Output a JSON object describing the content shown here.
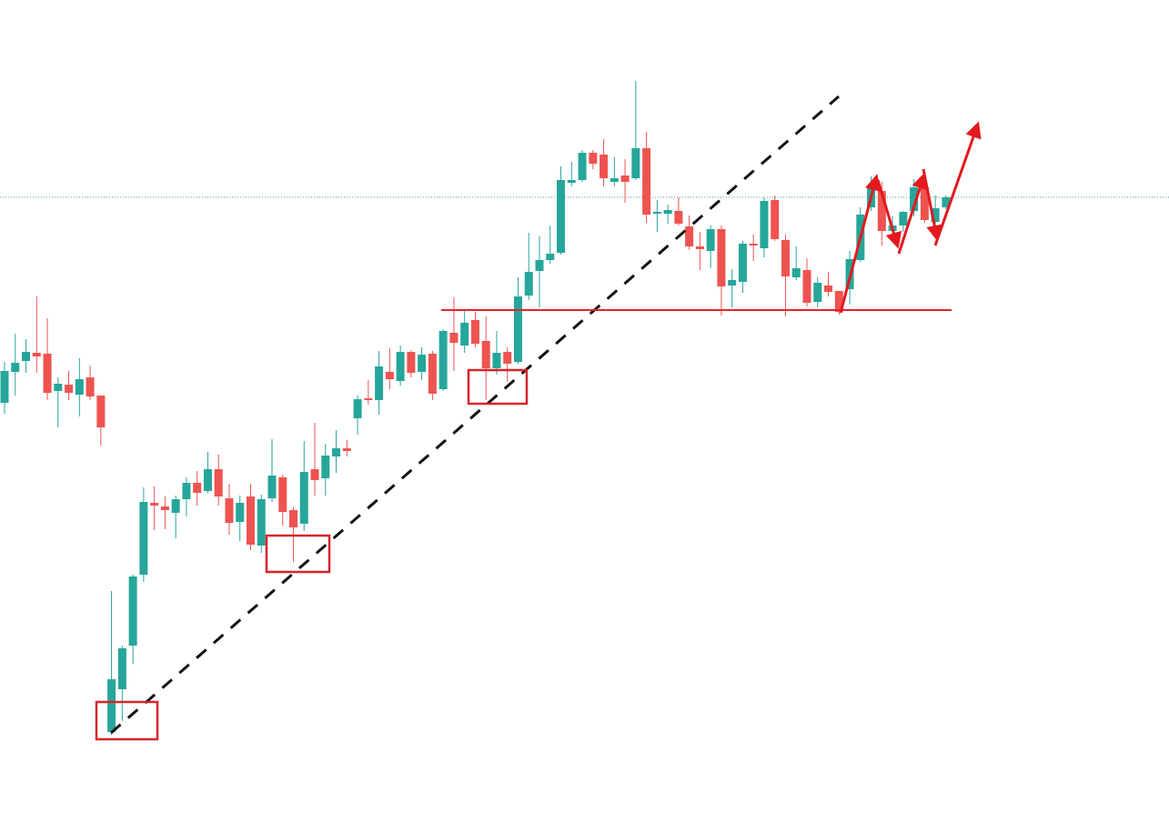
{
  "chart_data": {
    "type": "candlestick",
    "up_color": "#26a69a",
    "down_color": "#ef5350",
    "ylim": [
      0,
      915
    ],
    "open": [
      472,
      506,
      518,
      527,
      526,
      485,
      492,
      481,
      500,
      480,
      110,
      157,
      205,
      283,
      362,
      358,
      351,
      366,
      384,
      375,
      399,
      367,
      341,
      369,
      315,
      367,
      390,
      354,
      339,
      399,
      389,
      413,
      422,
      455,
      477,
      475,
      506,
      496,
      528,
      506,
      526,
      487,
      549,
      535,
      563,
      540,
      510,
      528,
      517,
      590,
      617,
      629,
      637,
      714,
      717,
      747,
      745,
      715,
      722,
      719,
      752,
      680,
      680,
      683,
      666,
      644,
      639,
      663,
      601,
      605,
      647,
      642,
      695,
      651,
      610,
      618,
      583,
      601,
      595,
      597,
      629,
      687,
      705,
      661,
      667,
      683,
      709,
      671,
      687
    ],
    "high": [
      517,
      548,
      542,
      589,
      565,
      500,
      507,
      521,
      513,
      480,
      265,
      205,
      283,
      379,
      380,
      369,
      370,
      390,
      397,
      418,
      415,
      383,
      370,
      383,
      371,
      432,
      393,
      357,
      430,
      450,
      427,
      442,
      431,
      480,
      497,
      529,
      532,
      535,
      530,
      533,
      529,
      553,
      588,
      575,
      572,
      567,
      551,
      533,
      610,
      659,
      655,
      667,
      732,
      737,
      750,
      750,
      762,
      742,
      740,
      826,
      770,
      695,
      690,
      698,
      678,
      660,
      667,
      667,
      619,
      650,
      657,
      698,
      700,
      657,
      644,
      631,
      610,
      616,
      595,
      639,
      687,
      721,
      715,
      677,
      683,
      718,
      718,
      700,
      700
    ],
    "low": [
      460,
      480,
      505,
      505,
      475,
      445,
      475,
      457,
      475,
      425,
      107,
      122,
      185,
      275,
      332,
      333,
      323,
      347,
      359,
      373,
      359,
      327,
      320,
      310,
      307,
      363,
      337,
      297,
      331,
      370,
      370,
      395,
      413,
      437,
      470,
      459,
      487,
      491,
      500,
      497,
      475,
      485,
      507,
      527,
      533,
      475,
      503,
      495,
      515,
      585,
      577,
      625,
      635,
      710,
      715,
      729,
      710,
      710,
      692,
      717,
      670,
      660,
      669,
      667,
      640,
      618,
      620,
      568,
      577,
      593,
      628,
      632,
      650,
      567,
      607,
      578,
      577,
      589,
      569,
      580,
      627,
      683,
      645,
      657,
      660,
      677,
      670,
      667,
      685
    ],
    "close": [
      507,
      516,
      528,
      523,
      483,
      493,
      483,
      498,
      479,
      445,
      168,
      202,
      281,
      363,
      359,
      354,
      366,
      384,
      373,
      399,
      369,
      340,
      362,
      316,
      366,
      392,
      352,
      335,
      396,
      387,
      414,
      422,
      419,
      476,
      475,
      512,
      498,
      528,
      505,
      525,
      482,
      551,
      538,
      560,
      537,
      510,
      527,
      515,
      589,
      616,
      629,
      636,
      717,
      717,
      747,
      735,
      719,
      719,
      715,
      752,
      679,
      682,
      684,
      669,
      644,
      641,
      663,
      600,
      607,
      647,
      645,
      694,
      652,
      611,
      620,
      582,
      604,
      594,
      572,
      630,
      679,
      709,
      661,
      667,
      682,
      709,
      673,
      686,
      698
    ]
  }
}
